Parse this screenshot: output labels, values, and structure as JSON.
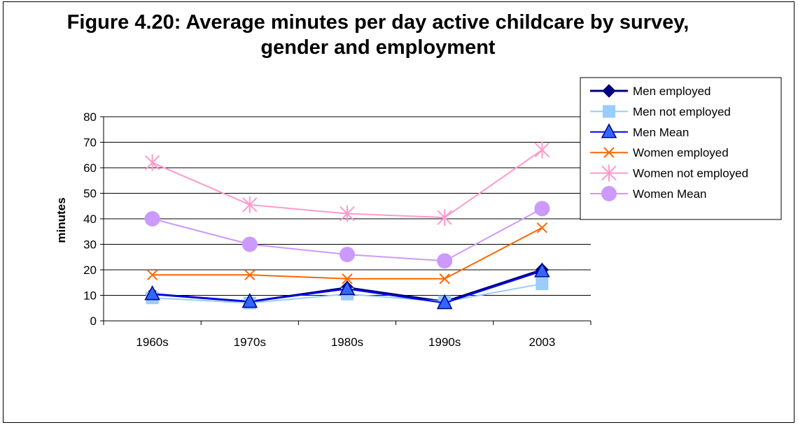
{
  "chart_data": {
    "type": "line",
    "title": "Figure 4.20: Average minutes per day active childcare  by survey,  gender and employment",
    "xlabel": "",
    "ylabel": "minutes",
    "categories": [
      "1960s",
      "1970s",
      "1980s",
      "1990s",
      "2003"
    ],
    "ylim": [
      0,
      80
    ],
    "yticks": [
      0,
      10,
      20,
      30,
      40,
      50,
      60,
      70,
      80
    ],
    "grid": true,
    "legend_position": "right",
    "series": [
      {
        "name": "Men employed",
        "values": [
          10.5,
          7.5,
          13,
          7.5,
          20
        ],
        "color": "#000080",
        "marker": "diamond",
        "width": 3
      },
      {
        "name": "Men not employed",
        "values": [
          9,
          7,
          10.5,
          7.5,
          14.5
        ],
        "color": "#99ccff",
        "marker": "square",
        "width": 2
      },
      {
        "name": "Men Mean",
        "values": [
          10.5,
          7.5,
          12.5,
          7,
          19.5
        ],
        "color": "#0000ff",
        "marker": "triangle",
        "width": 2
      },
      {
        "name": "Women employed",
        "values": [
          18,
          18,
          16.5,
          16.5,
          36.5
        ],
        "color": "#ff6600",
        "marker": "x",
        "width": 2
      },
      {
        "name": "Women not employed",
        "values": [
          62,
          45.5,
          42,
          40.5,
          67
        ],
        "color": "#ff99cc",
        "marker": "star",
        "width": 2
      },
      {
        "name": "Women Mean",
        "values": [
          40,
          30,
          26,
          23.5,
          44
        ],
        "color": "#cc99ff",
        "marker": "circle",
        "width": 2
      }
    ]
  }
}
